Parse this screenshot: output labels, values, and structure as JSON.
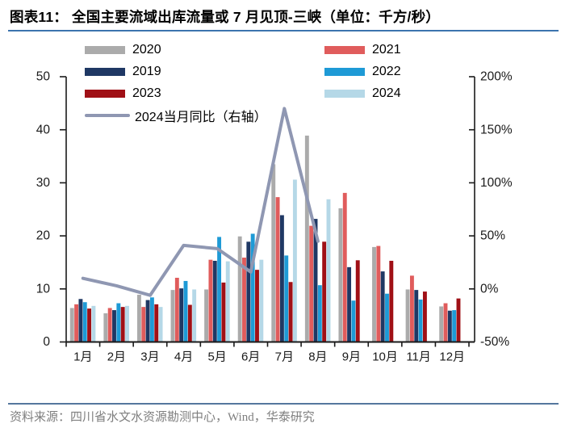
{
  "header": {
    "title": "图表11：  全国主要流域出库流量或 7 月见顶-三峡（单位：千方/秒）"
  },
  "legend": {
    "items": [
      {
        "key": "y2020",
        "label": "2020",
        "color": "#ABABAB",
        "swatch": "bar",
        "col": 0,
        "row": 0
      },
      {
        "key": "y2021",
        "label": "2021",
        "color": "#E05C5C",
        "swatch": "bar",
        "col": 1,
        "row": 0
      },
      {
        "key": "y2019",
        "label": "2019",
        "color": "#1F3864",
        "swatch": "bar",
        "col": 0,
        "row": 1
      },
      {
        "key": "y2022",
        "label": "2022",
        "color": "#1E9AD6",
        "swatch": "bar",
        "col": 1,
        "row": 1
      },
      {
        "key": "y2023",
        "label": "2023",
        "color": "#A01016",
        "swatch": "bar",
        "col": 0,
        "row": 2
      },
      {
        "key": "y2024",
        "label": "2024",
        "color": "#B5D8E7",
        "swatch": "bar",
        "col": 1,
        "row": 2
      },
      {
        "key": "yoy",
        "label": "2024当月同比（右轴）",
        "color": "#8F97B2",
        "swatch": "line",
        "col": 0,
        "row": 3
      }
    ]
  },
  "chart_data": {
    "type": "bar",
    "title": "全国主要流域出库流量或7月见顶-三峡",
    "unit": "千方/秒",
    "categories": [
      "1月",
      "2月",
      "3月",
      "4月",
      "5月",
      "6月",
      "7月",
      "8月",
      "9月",
      "10月",
      "11月",
      "12月"
    ],
    "bar_order_note": "bars drawn left-to-right per month: 2020, 2021, 2019, 2022, 2023, 2024",
    "series": [
      {
        "name": "2020",
        "color": "#ABABAB",
        "values": [
          6.4,
          5.4,
          8.9,
          9.8,
          9.9,
          19.9,
          33.5,
          38.9,
          25.2,
          17.9,
          9.9,
          6.7
        ]
      },
      {
        "name": "2021",
        "color": "#E05C5C",
        "values": [
          7.1,
          6.4,
          6.6,
          12.1,
          15.5,
          15.9,
          27.3,
          21.9,
          28.1,
          18.1,
          12.5,
          7.3
        ]
      },
      {
        "name": "2019",
        "color": "#1F3864",
        "values": [
          8.1,
          6.0,
          7.9,
          10.1,
          15.3,
          18.9,
          23.9,
          23.2,
          14.1,
          13.3,
          9.8,
          5.9
        ]
      },
      {
        "name": "2022",
        "color": "#1E9AD6",
        "values": [
          7.5,
          7.3,
          8.4,
          11.5,
          19.8,
          20.4,
          16.3,
          10.7,
          7.8,
          9.1,
          8.0,
          6.0
        ]
      },
      {
        "name": "2023",
        "color": "#A01016",
        "values": [
          6.3,
          6.6,
          7.1,
          7.0,
          11.2,
          13.6,
          11.3,
          18.9,
          15.4,
          15.3,
          9.5,
          8.2
        ]
      },
      {
        "name": "2024",
        "color": "#B5D8E7",
        "values": [
          6.8,
          6.8,
          6.6,
          9.9,
          15.2,
          15.5,
          30.6,
          26.9,
          null,
          null,
          null,
          null
        ]
      }
    ],
    "line_series": {
      "name": "2024当月同比（右轴）",
      "color": "#8F97B2",
      "axis": "right",
      "values_pct": [
        10,
        3,
        -6,
        41,
        38,
        16,
        170,
        45,
        null,
        null,
        null,
        null
      ]
    },
    "left_axis": {
      "min": 0,
      "max": 50,
      "tick_values": [
        0,
        10,
        20,
        30,
        40,
        50
      ],
      "tick_labels": [
        "0",
        "10",
        "20",
        "30",
        "40",
        "50"
      ]
    },
    "right_axis": {
      "min": -50,
      "max": 200,
      "tick_values": [
        -50,
        0,
        50,
        100,
        150,
        200
      ],
      "tick_labels": [
        "-50%",
        "0%",
        "50%",
        "100%",
        "150%",
        "200%"
      ]
    },
    "grid": false,
    "legend_position": "top"
  },
  "footer": {
    "source": "资料来源：四川省水文水资源勘测中心，Wind，华泰研究"
  }
}
